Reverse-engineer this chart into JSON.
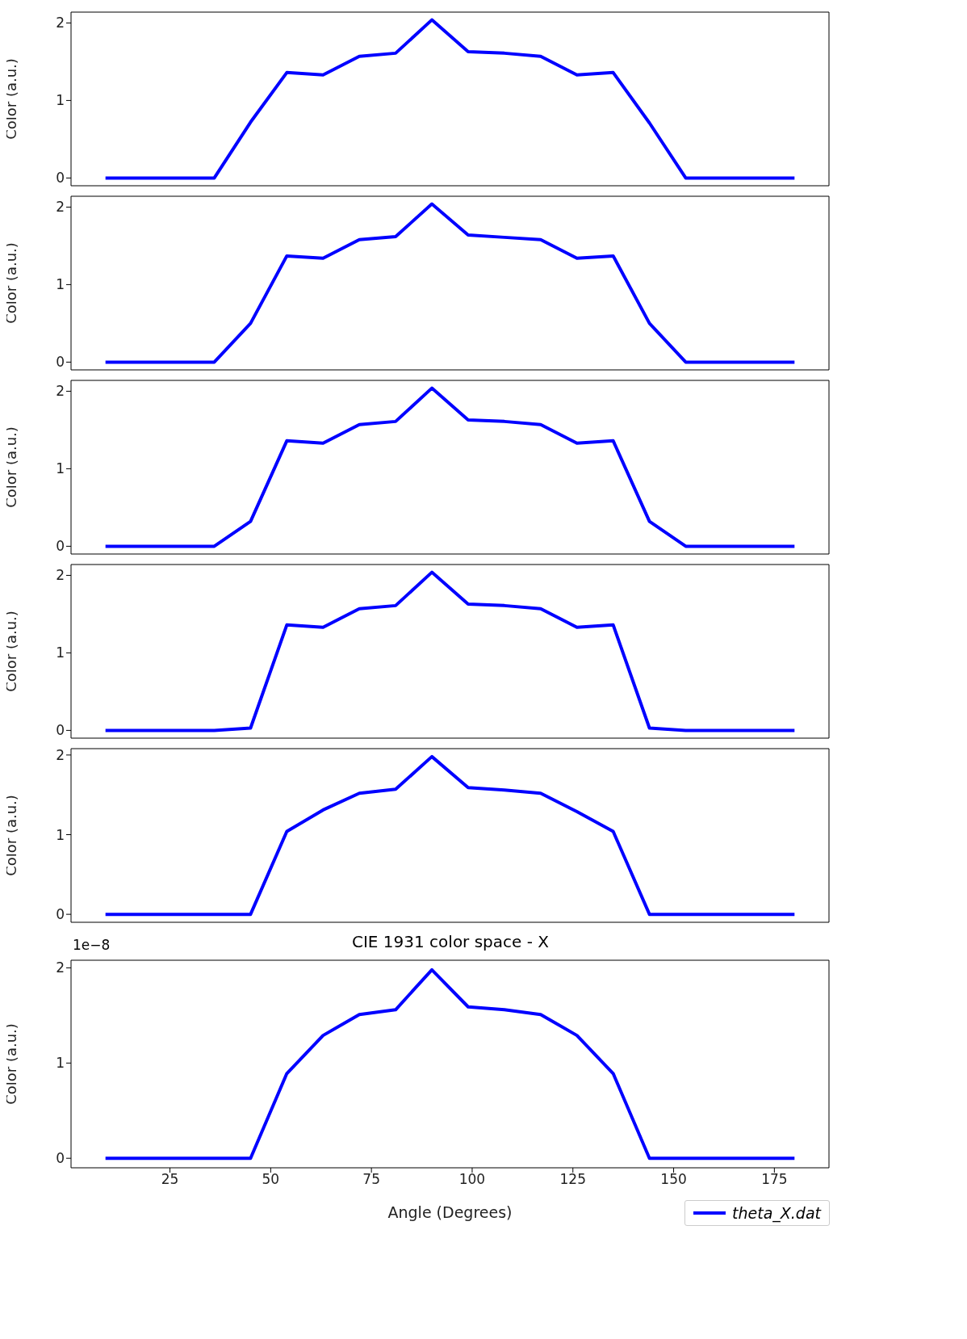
{
  "chart_data": [
    {
      "type": "line",
      "ylabel": "Color (a.u.)",
      "x": [
        9,
        18,
        27,
        36,
        45,
        54,
        63,
        72,
        81,
        90,
        99,
        108,
        117,
        126,
        135,
        144,
        153,
        162,
        171,
        180
      ],
      "xlim": [
        0.45,
        188.55
      ],
      "ylim": [
        -0.1,
        2.14
      ],
      "yticks": [
        0,
        1,
        2
      ],
      "tick_labels": "y",
      "series": [
        {
          "color": "#0000ff",
          "values": [
            0,
            0,
            0,
            0,
            0.72,
            1.36,
            1.33,
            1.57,
            1.61,
            2.04,
            1.63,
            1.61,
            1.57,
            1.33,
            1.36,
            0.71,
            0,
            0,
            0,
            0
          ]
        }
      ]
    },
    {
      "type": "line",
      "ylabel": "Color (a.u.)",
      "x": [
        9,
        18,
        27,
        36,
        45,
        54,
        63,
        72,
        81,
        90,
        99,
        108,
        117,
        126,
        135,
        144,
        153,
        162,
        171,
        180
      ],
      "xlim": [
        0.45,
        188.55
      ],
      "ylim": [
        -0.1,
        2.14
      ],
      "yticks": [
        0,
        1,
        2
      ],
      "tick_labels": "y",
      "series": [
        {
          "color": "#0000ff",
          "values": [
            0,
            0,
            0,
            0,
            0.5,
            1.37,
            1.34,
            1.58,
            1.62,
            2.04,
            1.64,
            1.61,
            1.58,
            1.34,
            1.37,
            0.5,
            0,
            0,
            0,
            0
          ]
        }
      ]
    },
    {
      "type": "line",
      "ylabel": "Color (a.u.)",
      "x": [
        9,
        18,
        27,
        36,
        45,
        54,
        63,
        72,
        81,
        90,
        99,
        108,
        117,
        126,
        135,
        144,
        153,
        162,
        171,
        180
      ],
      "xlim": [
        0.45,
        188.55
      ],
      "ylim": [
        -0.1,
        2.14
      ],
      "yticks": [
        0,
        1,
        2
      ],
      "tick_labels": "y",
      "series": [
        {
          "color": "#0000ff",
          "values": [
            0,
            0,
            0,
            0,
            0.32,
            1.36,
            1.33,
            1.57,
            1.61,
            2.04,
            1.63,
            1.61,
            1.57,
            1.33,
            1.36,
            0.32,
            0,
            0,
            0,
            0
          ]
        }
      ]
    },
    {
      "type": "line",
      "ylabel": "Color (a.u.)",
      "x": [
        9,
        18,
        27,
        36,
        45,
        54,
        63,
        72,
        81,
        90,
        99,
        108,
        117,
        126,
        135,
        144,
        153,
        162,
        171,
        180
      ],
      "xlim": [
        0.45,
        188.55
      ],
      "ylim": [
        -0.1,
        2.14
      ],
      "yticks": [
        0,
        1,
        2
      ],
      "tick_labels": "y",
      "series": [
        {
          "color": "#0000ff",
          "values": [
            0,
            0,
            0,
            0,
            0.03,
            1.36,
            1.33,
            1.57,
            1.61,
            2.04,
            1.63,
            1.61,
            1.57,
            1.33,
            1.36,
            0.03,
            0,
            0,
            0,
            0
          ]
        }
      ]
    },
    {
      "type": "line",
      "ylabel": "Color (a.u.)",
      "x": [
        9,
        18,
        27,
        36,
        45,
        54,
        63,
        72,
        81,
        90,
        99,
        108,
        117,
        126,
        135,
        144,
        153,
        162,
        171,
        180
      ],
      "xlim": [
        0.45,
        188.55
      ],
      "ylim": [
        -0.1,
        2.08
      ],
      "yticks": [
        0,
        1,
        2
      ],
      "tick_labels": "y",
      "series": [
        {
          "color": "#0000ff",
          "values": [
            0,
            0,
            0,
            0,
            0,
            1.04,
            1.31,
            1.52,
            1.57,
            1.98,
            1.59,
            1.56,
            1.52,
            1.29,
            1.04,
            0,
            0,
            0,
            0,
            0
          ]
        }
      ]
    },
    {
      "type": "line",
      "title": "CIE 1931 color space - X",
      "xlabel": "Angle (Degrees)",
      "ylabel": "Color (a.u.)",
      "annotations": [
        "1e−8"
      ],
      "x": [
        9,
        18,
        27,
        36,
        45,
        54,
        63,
        72,
        81,
        90,
        99,
        108,
        117,
        126,
        135,
        144,
        153,
        162,
        171,
        180
      ],
      "xlim": [
        0.45,
        188.55
      ],
      "xticks": [
        25,
        50,
        75,
        100,
        125,
        150,
        175
      ],
      "ylim": [
        -0.1,
        2.08
      ],
      "yticks": [
        0,
        1,
        2
      ],
      "legend": "bottom right",
      "series": [
        {
          "name": "theta_X.dat",
          "color": "#0000ff",
          "values": [
            0,
            0,
            0,
            0,
            0,
            0.89,
            1.29,
            1.51,
            1.56,
            1.98,
            1.59,
            1.56,
            1.51,
            1.29,
            0.89,
            0,
            0,
            0,
            0,
            0
          ]
        }
      ]
    }
  ]
}
